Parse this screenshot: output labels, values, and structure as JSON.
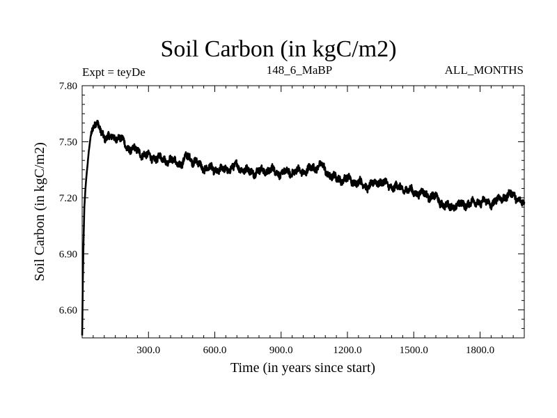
{
  "header": {
    "title": "Soil Carbon (in kgC/m2)",
    "expt_label": "Expt = teyDe",
    "subtitle_center": "148_6_MaBP",
    "subtitle_right": "ALL_MONTHS"
  },
  "chart_data": {
    "type": "line",
    "title": "Soil Carbon (in kgC/m2)",
    "xlabel": "Time (in years since start)",
    "ylabel": "Soil Carbon (in kgC/m2)",
    "xlim": [
      0,
      2000
    ],
    "ylim": [
      6.45,
      7.8
    ],
    "xticks": [
      300,
      600,
      900,
      1200,
      1500,
      1800
    ],
    "xtick_labels": [
      "300.0",
      "600.0",
      "900.0",
      "1200.0",
      "1500.0",
      "1800.0"
    ],
    "yticks": [
      7.8,
      7.5,
      7.2,
      6.9,
      6.6
    ],
    "ytick_labels": [
      "7.80",
      "7.50",
      "7.20",
      "6.90",
      "6.60"
    ],
    "grid": false,
    "series": [
      {
        "name": "Soil Carbon",
        "color": "#000000",
        "x": [
          0,
          3,
          6,
          10,
          15,
          20,
          25,
          30,
          40,
          50,
          60,
          70,
          80,
          90,
          100,
          120,
          140,
          160,
          180,
          200,
          250,
          300,
          350,
          400,
          450,
          480,
          500,
          550,
          600,
          650,
          700,
          750,
          800,
          850,
          900,
          950,
          1000,
          1050,
          1080,
          1100,
          1150,
          1200,
          1250,
          1300,
          1340,
          1400,
          1450,
          1500,
          1550,
          1600,
          1650,
          1700,
          1750,
          1800,
          1850,
          1900,
          1950,
          2000
        ],
        "y": [
          6.46,
          6.75,
          6.95,
          7.15,
          7.25,
          7.32,
          7.38,
          7.45,
          7.55,
          7.58,
          7.6,
          7.58,
          7.57,
          7.55,
          7.53,
          7.52,
          7.52,
          7.53,
          7.51,
          7.47,
          7.45,
          7.42,
          7.41,
          7.4,
          7.38,
          7.43,
          7.4,
          7.36,
          7.35,
          7.35,
          7.37,
          7.34,
          7.34,
          7.35,
          7.33,
          7.34,
          7.34,
          7.36,
          7.38,
          7.34,
          7.3,
          7.3,
          7.28,
          7.26,
          7.29,
          7.26,
          7.25,
          7.23,
          7.22,
          7.2,
          7.15,
          7.16,
          7.17,
          7.18,
          7.17,
          7.2,
          7.22,
          7.16
        ]
      }
    ]
  }
}
